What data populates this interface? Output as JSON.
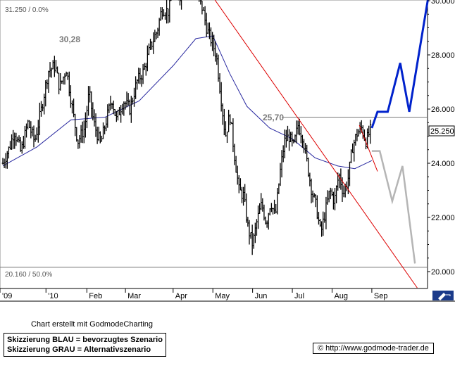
{
  "chart_data": {
    "type": "ohlc",
    "x_ticks": [
      "'09",
      "'10",
      "Feb",
      "Mar",
      "Apr",
      "May",
      "Jun",
      "Jul",
      "Aug",
      "Sep"
    ],
    "y_ticks": [
      "20.000",
      "22.000",
      "24.000",
      "26.000",
      "28.000",
      "30.000"
    ],
    "ylim": [
      19.3,
      31.3
    ],
    "fib_levels": [
      {
        "label": "31.250 / 0.0%",
        "value": 31.25
      },
      {
        "label": "20.160 / 50.0%",
        "value": 20.16
      }
    ],
    "horizontal_lines": [
      30.28,
      25.7
    ],
    "annotations": [
      {
        "text": "30,28",
        "value": 30.28
      },
      {
        "text": "25,70",
        "value": 25.7
      }
    ],
    "last_price": "25.250",
    "price_series": [
      {
        "day": 0,
        "close": 24.0
      },
      {
        "day": 6,
        "close": 24.6
      },
      {
        "day": 10,
        "close": 25.2
      },
      {
        "day": 16,
        "close": 24.4
      },
      {
        "day": 22,
        "close": 25.5
      },
      {
        "day": 28,
        "close": 24.8
      },
      {
        "day": 34,
        "close": 26.0
      },
      {
        "day": 40,
        "close": 27.4
      },
      {
        "day": 46,
        "close": 27.6
      },
      {
        "day": 50,
        "close": 26.8
      },
      {
        "day": 56,
        "close": 27.5
      },
      {
        "day": 62,
        "close": 25.8
      },
      {
        "day": 66,
        "close": 24.8
      },
      {
        "day": 72,
        "close": 25.3
      },
      {
        "day": 76,
        "close": 26.6
      },
      {
        "day": 80,
        "close": 25.5
      },
      {
        "day": 86,
        "close": 24.7
      },
      {
        "day": 90,
        "close": 25.4
      },
      {
        "day": 96,
        "close": 26.4
      },
      {
        "day": 100,
        "close": 25.6
      },
      {
        "day": 106,
        "close": 26.3
      },
      {
        "day": 112,
        "close": 26.0
      },
      {
        "day": 118,
        "close": 27.0
      },
      {
        "day": 124,
        "close": 27.4
      },
      {
        "day": 130,
        "close": 28.3
      },
      {
        "day": 136,
        "close": 28.9
      },
      {
        "day": 140,
        "close": 29.7
      },
      {
        "day": 146,
        "close": 29.6
      },
      {
        "day": 150,
        "close": 30.4
      },
      {
        "day": 156,
        "close": 30.2
      },
      {
        "day": 160,
        "close": 31.0
      },
      {
        "day": 164,
        "close": 30.4
      },
      {
        "day": 168,
        "close": 31.0
      },
      {
        "day": 172,
        "close": 30.1
      },
      {
        "day": 176,
        "close": 29.7
      },
      {
        "day": 180,
        "close": 28.9
      },
      {
        "day": 184,
        "close": 28.5
      },
      {
        "day": 188,
        "close": 28.0
      },
      {
        "day": 192,
        "close": 26.5
      },
      {
        "day": 196,
        "close": 25.0
      },
      {
        "day": 200,
        "close": 25.8
      },
      {
        "day": 204,
        "close": 24.3
      },
      {
        "day": 208,
        "close": 23.0
      },
      {
        "day": 212,
        "close": 22.8
      },
      {
        "day": 216,
        "close": 21.6
      },
      {
        "day": 220,
        "close": 21.0
      },
      {
        "day": 224,
        "close": 21.9
      },
      {
        "day": 228,
        "close": 22.5
      },
      {
        "day": 232,
        "close": 21.8
      },
      {
        "day": 236,
        "close": 22.6
      },
      {
        "day": 240,
        "close": 22.0
      },
      {
        "day": 244,
        "close": 23.6
      },
      {
        "day": 248,
        "close": 24.8
      },
      {
        "day": 252,
        "close": 25.0
      },
      {
        "day": 256,
        "close": 24.6
      },
      {
        "day": 260,
        "close": 25.4
      },
      {
        "day": 264,
        "close": 25.0
      },
      {
        "day": 268,
        "close": 24.0
      },
      {
        "day": 272,
        "close": 23.0
      },
      {
        "day": 276,
        "close": 22.4
      },
      {
        "day": 280,
        "close": 21.4
      },
      {
        "day": 284,
        "close": 22.2
      },
      {
        "day": 288,
        "close": 23.0
      },
      {
        "day": 292,
        "close": 22.6
      },
      {
        "day": 296,
        "close": 23.6
      },
      {
        "day": 300,
        "close": 22.9
      },
      {
        "day": 304,
        "close": 23.4
      },
      {
        "day": 308,
        "close": 24.6
      },
      {
        "day": 312,
        "close": 25.1
      },
      {
        "day": 316,
        "close": 25.3
      },
      {
        "day": 320,
        "close": 24.8
      },
      {
        "day": 324,
        "close": 25.25
      }
    ],
    "moving_average": [
      {
        "day": 0,
        "value": 23.9
      },
      {
        "day": 30,
        "value": 24.6
      },
      {
        "day": 60,
        "value": 25.6
      },
      {
        "day": 90,
        "value": 25.7
      },
      {
        "day": 120,
        "value": 26.3
      },
      {
        "day": 150,
        "value": 27.6
      },
      {
        "day": 170,
        "value": 28.6
      },
      {
        "day": 185,
        "value": 28.7
      },
      {
        "day": 200,
        "value": 27.3
      },
      {
        "day": 215,
        "value": 26.1
      },
      {
        "day": 235,
        "value": 25.3
      },
      {
        "day": 255,
        "value": 24.9
      },
      {
        "day": 275,
        "value": 24.2
      },
      {
        "day": 295,
        "value": 23.9
      },
      {
        "day": 310,
        "value": 23.8
      },
      {
        "day": 325,
        "value": 24.1
      }
    ],
    "trendline": [
      {
        "day": 168,
        "value": 31.15
      },
      {
        "day": 365,
        "value": 19.4
      }
    ],
    "scenario_blue": [
      {
        "day": 325,
        "value": 25.3
      },
      {
        "day": 330,
        "value": 25.9
      },
      {
        "day": 339,
        "value": 25.9
      },
      {
        "day": 350,
        "value": 27.7
      },
      {
        "day": 358,
        "value": 25.9
      },
      {
        "day": 375,
        "value": 30.2
      }
    ],
    "scenario_gray": [
      {
        "day": 325,
        "value": 24.45
      },
      {
        "day": 332,
        "value": 24.45
      },
      {
        "day": 343,
        "value": 22.6
      },
      {
        "day": 352,
        "value": 23.9
      },
      {
        "day": 363,
        "value": 20.3
      }
    ]
  },
  "footer": {
    "credit": "Chart erstellt mit GodmodeCharting",
    "legend_blue": "Skizzierung BLAU = bevorzugtes Szenario",
    "legend_gray": "Skizzierung GRAU = Alternativszenario",
    "url": "© http://www.godmode-trader.de"
  },
  "colors": {
    "price": "#000000",
    "moving_average": "#2a2aa0",
    "trendline": "#dd0000",
    "scenario_blue": "#0022cc",
    "scenario_gray": "#b5b5b5",
    "levels": "#777777",
    "last_price_bg": "#ffffff"
  },
  "icons": {
    "corner": "pencil-icon"
  }
}
